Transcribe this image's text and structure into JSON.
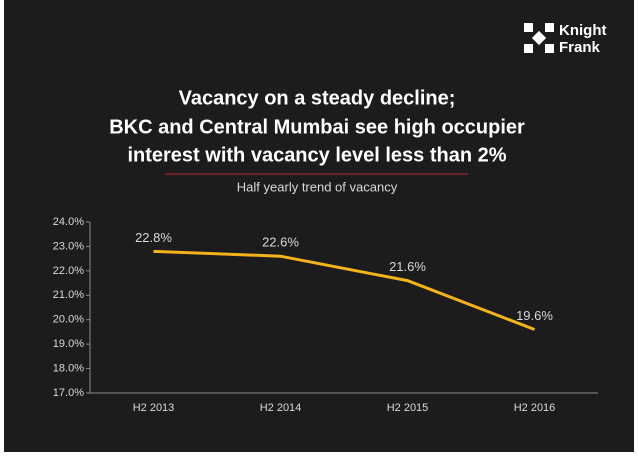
{
  "logo": {
    "line1": "Knight",
    "line2": "Frank"
  },
  "chart_data": {
    "type": "line",
    "title": [
      "Vacancy on a steady decline;",
      "BKC and Central Mumbai see high occupier",
      "interest with vacancy level less than 2%"
    ],
    "subtitle": "Half yearly trend of vacancy",
    "categories": [
      "H2 2013",
      "H2 2014",
      "H2 2015",
      "H2 2016"
    ],
    "values": [
      22.8,
      22.6,
      21.6,
      19.6
    ],
    "value_labels": [
      "22.8%",
      "22.6%",
      "21.6%",
      "19.6%"
    ],
    "color": "#f5b31a",
    "ylim": [
      17,
      24
    ],
    "yticks": [
      {
        "value": 17,
        "label": "17.0%"
      },
      {
        "value": 18,
        "label": "18.0%"
      },
      {
        "value": 19,
        "label": "19.0%"
      },
      {
        "value": 20,
        "label": "20.0%"
      },
      {
        "value": 21,
        "label": "21.0%"
      },
      {
        "value": 22,
        "label": "22.0%"
      },
      {
        "value": 23,
        "label": "23.0%"
      },
      {
        "value": 24,
        "label": "24.0%"
      }
    ]
  }
}
